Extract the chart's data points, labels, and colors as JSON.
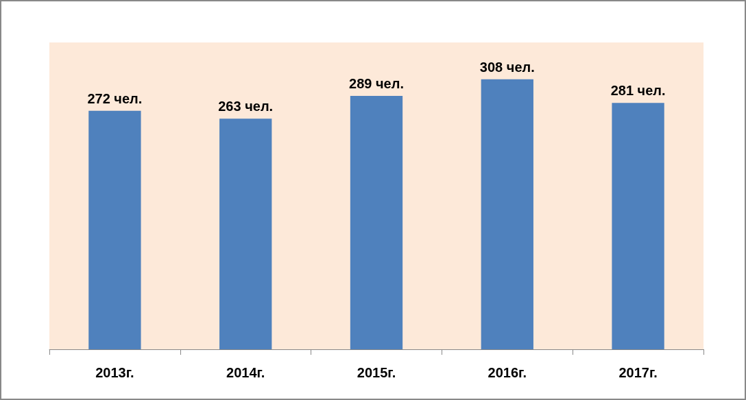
{
  "chart_data": {
    "type": "bar",
    "categories": [
      "2013г.",
      "2014г.",
      "2015г.",
      "2016г.",
      "2017г."
    ],
    "values": [
      272,
      263,
      289,
      308,
      281
    ],
    "color": "#4f81bd",
    "value_labels": [
      "272 чел.",
      "263 чел.",
      "289 чел.",
      "308 чел.",
      "281 чел."
    ]
  }
}
